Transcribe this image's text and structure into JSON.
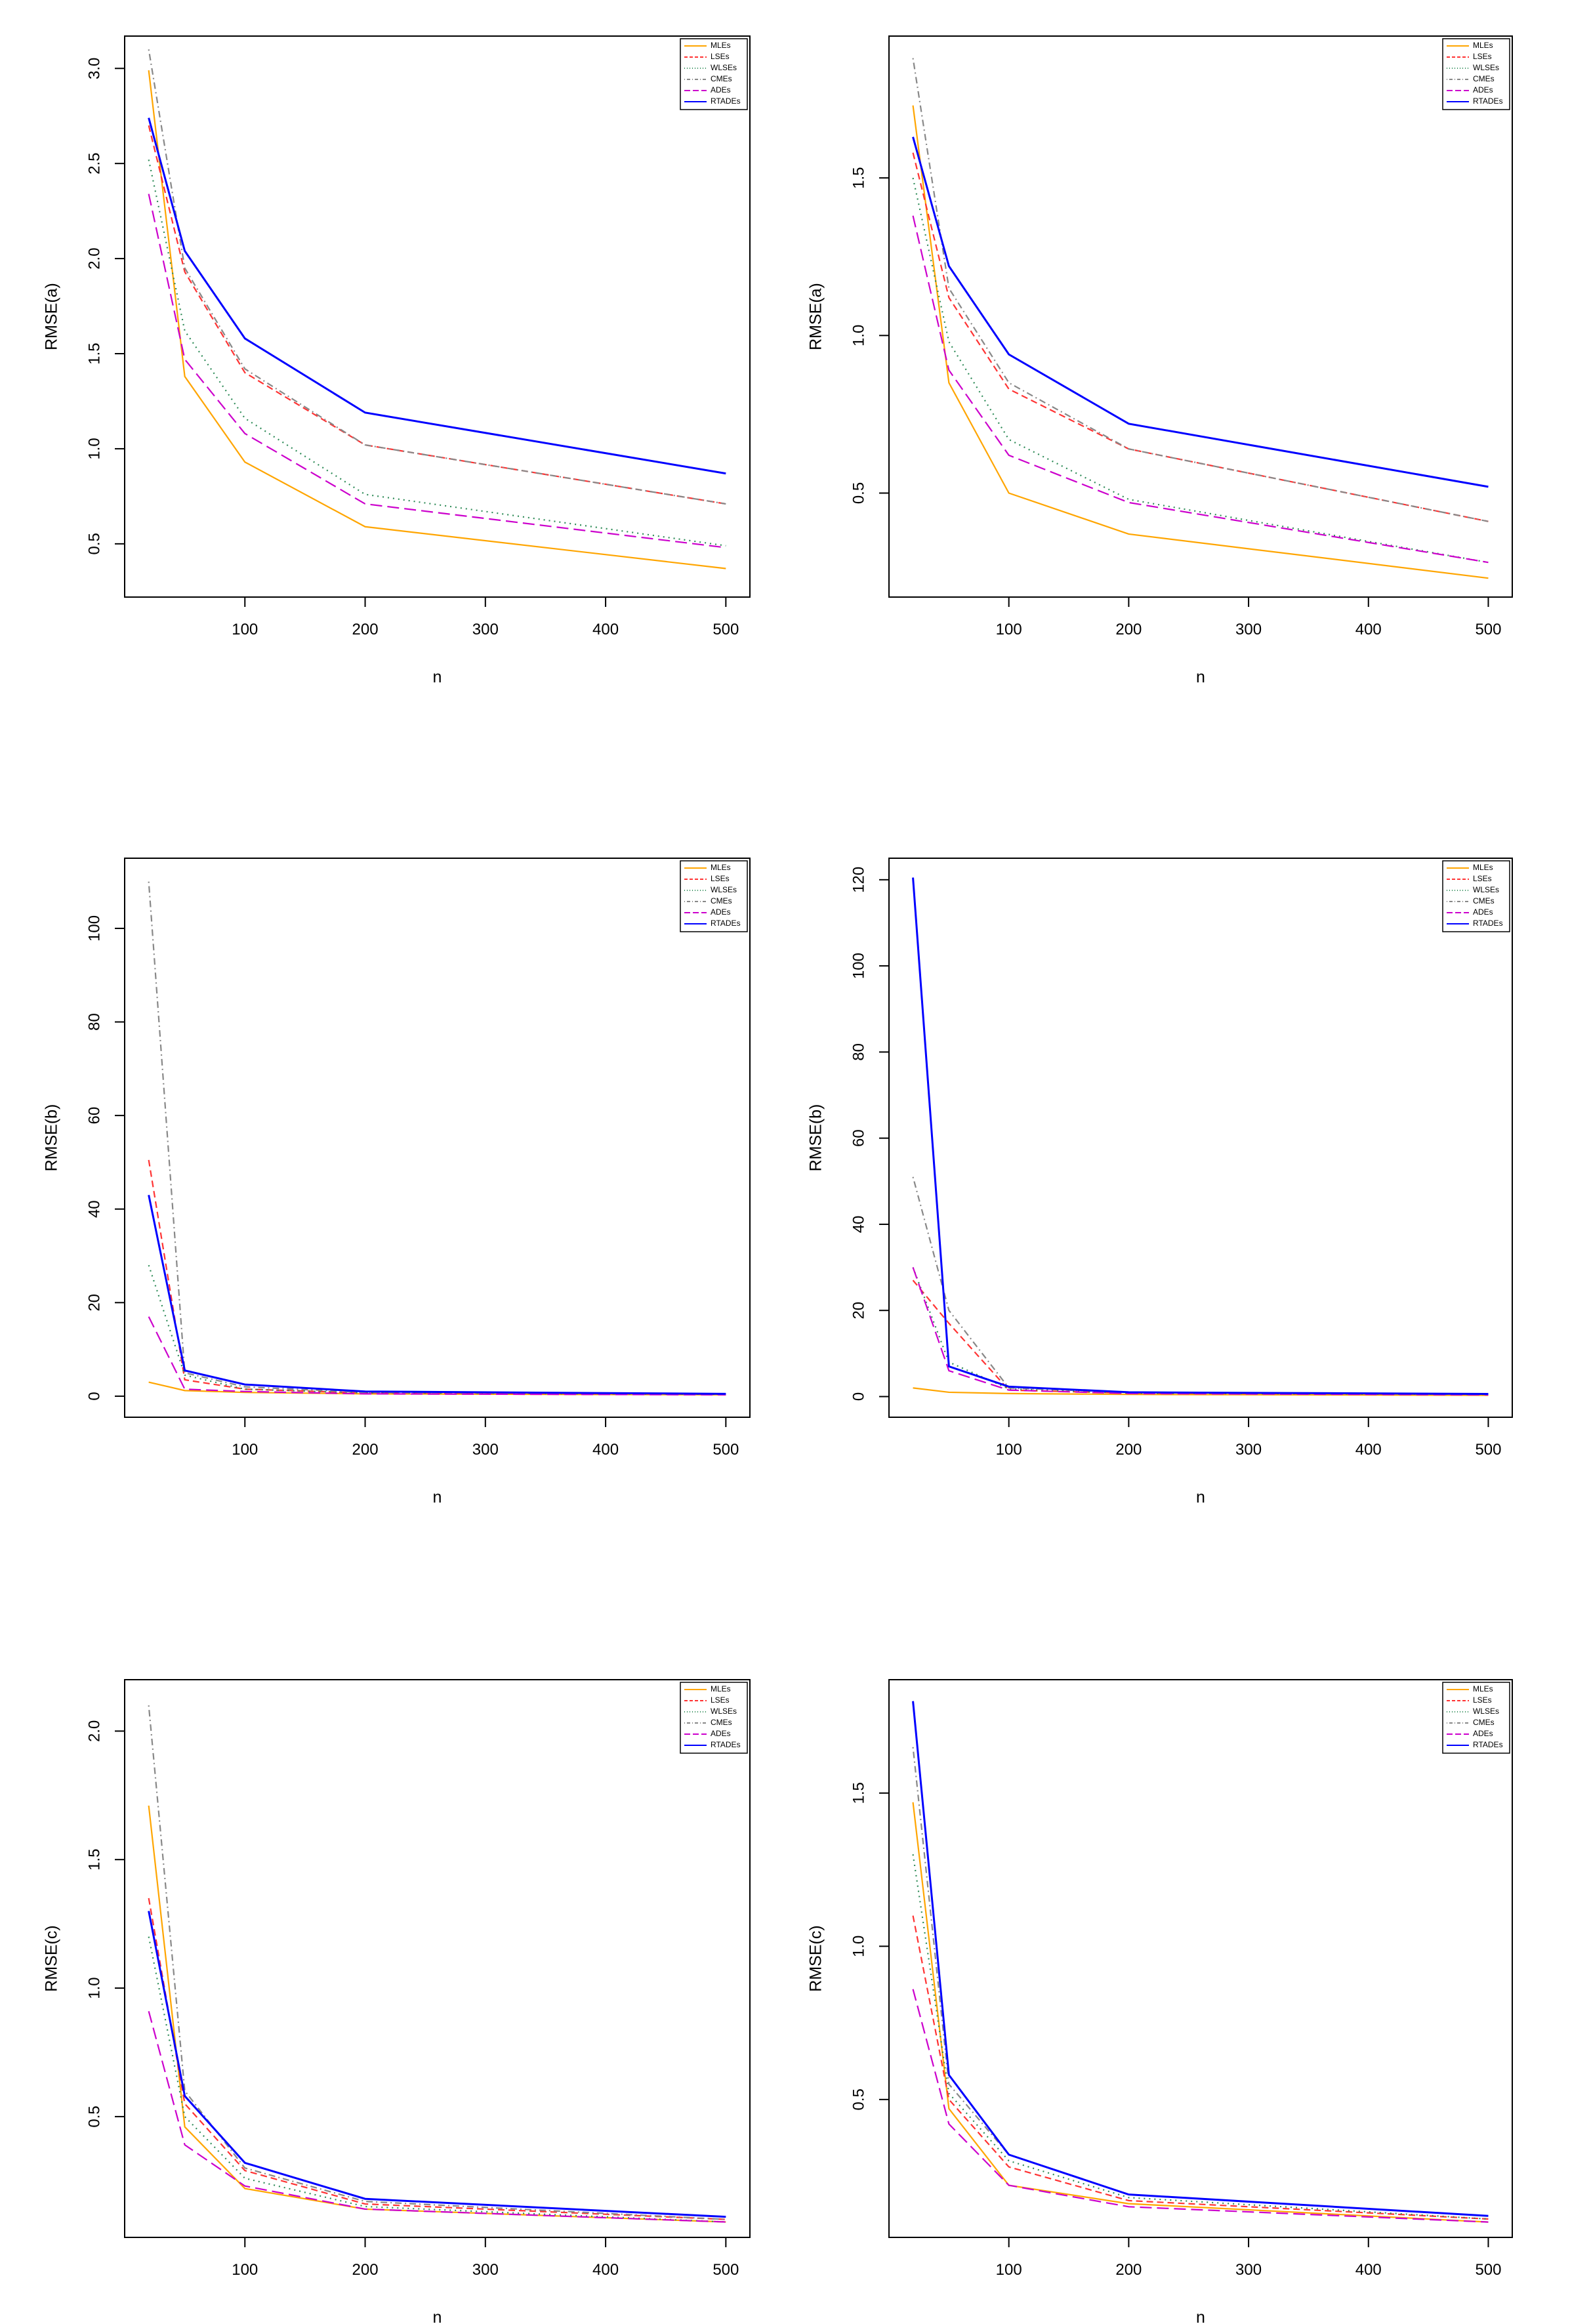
{
  "chart_data": [
    {
      "type": "line",
      "xlabel": "n",
      "ylabel": "RMSE(a)",
      "x": [
        20,
        50,
        100,
        200,
        500
      ],
      "xlim": [
        0,
        520
      ],
      "ylim": [
        0.22,
        3.17
      ],
      "xticks": [
        100,
        200,
        300,
        400,
        500
      ],
      "yticks": [
        0.5,
        1.0,
        1.5,
        2.0,
        2.5,
        3.0
      ],
      "ytick_labels": [
        "0.5",
        "1.0",
        "1.5",
        "2.0",
        "2.5",
        "3.0"
      ],
      "legend_position": "top-right",
      "grid": false,
      "series": [
        {
          "name": "MLEs",
          "values": [
            2.99,
            1.38,
            0.93,
            0.59,
            0.37
          ]
        },
        {
          "name": "LSEs",
          "values": [
            2.7,
            1.93,
            1.4,
            1.02,
            0.71
          ]
        },
        {
          "name": "WLSEs",
          "values": [
            2.52,
            1.62,
            1.16,
            0.76,
            0.49
          ]
        },
        {
          "name": "CMEs",
          "values": [
            3.1,
            1.95,
            1.42,
            1.02,
            0.71
          ]
        },
        {
          "name": "ADEs",
          "values": [
            2.34,
            1.47,
            1.08,
            0.71,
            0.48
          ]
        },
        {
          "name": "RTADEs",
          "values": [
            2.74,
            2.04,
            1.58,
            1.19,
            0.87
          ]
        }
      ]
    },
    {
      "type": "line",
      "xlabel": "n",
      "ylabel": "RMSE(a)",
      "x": [
        20,
        50,
        100,
        200,
        500
      ],
      "xlim": [
        0,
        520
      ],
      "ylim": [
        0.17,
        1.95
      ],
      "xticks": [
        100,
        200,
        300,
        400,
        500
      ],
      "yticks": [
        0.5,
        1.0,
        1.5
      ],
      "ytick_labels": [
        "0.5",
        "1.0",
        "1.5"
      ],
      "legend_position": "top-right",
      "grid": false,
      "series": [
        {
          "name": "MLEs",
          "values": [
            1.73,
            0.85,
            0.5,
            0.37,
            0.23
          ]
        },
        {
          "name": "LSEs",
          "values": [
            1.58,
            1.12,
            0.83,
            0.64,
            0.41
          ]
        },
        {
          "name": "WLSEs",
          "values": [
            1.5,
            0.98,
            0.67,
            0.48,
            0.28
          ]
        },
        {
          "name": "CMEs",
          "values": [
            1.88,
            1.15,
            0.85,
            0.64,
            0.41
          ]
        },
        {
          "name": "ADEs",
          "values": [
            1.38,
            0.89,
            0.62,
            0.47,
            0.28
          ]
        },
        {
          "name": "RTADEs",
          "values": [
            1.63,
            1.22,
            0.94,
            0.72,
            0.52
          ]
        }
      ]
    },
    {
      "type": "line",
      "xlabel": "n",
      "ylabel": "RMSE(b)",
      "x": [
        20,
        50,
        100,
        200,
        500
      ],
      "xlim": [
        0,
        520
      ],
      "ylim": [
        -4.5,
        115
      ],
      "xticks": [
        100,
        200,
        300,
        400,
        500
      ],
      "yticks": [
        0,
        20,
        40,
        60,
        80,
        100
      ],
      "ytick_labels": [
        "0",
        "20",
        "40",
        "60",
        "80",
        "100"
      ],
      "legend_position": "top-right",
      "grid": false,
      "series": [
        {
          "name": "MLEs",
          "values": [
            3.0,
            1.2,
            0.8,
            0.5,
            0.3
          ]
        },
        {
          "name": "LSEs",
          "values": [
            50.5,
            3.5,
            1.5,
            0.7,
            0.4
          ]
        },
        {
          "name": "WLSEs",
          "values": [
            28.0,
            4.5,
            1.5,
            0.7,
            0.4
          ]
        },
        {
          "name": "CMEs",
          "values": [
            110.0,
            5.0,
            2.0,
            0.8,
            0.5
          ]
        },
        {
          "name": "ADEs",
          "values": [
            17.0,
            1.5,
            1.0,
            0.5,
            0.3
          ]
        },
        {
          "name": "RTADEs",
          "values": [
            43.0,
            5.5,
            2.5,
            1.0,
            0.5
          ]
        }
      ]
    },
    {
      "type": "line",
      "xlabel": "n",
      "ylabel": "RMSE(b)",
      "x": [
        20,
        50,
        100,
        200,
        500
      ],
      "xlim": [
        0,
        520
      ],
      "ylim": [
        -4.8,
        125
      ],
      "xticks": [
        100,
        200,
        300,
        400,
        500
      ],
      "yticks": [
        0,
        20,
        40,
        60,
        80,
        100,
        120
      ],
      "ytick_labels": [
        "0",
        "20",
        "40",
        "60",
        "80",
        "100",
        "120"
      ],
      "legend_position": "top-right",
      "grid": false,
      "series": [
        {
          "name": "MLEs",
          "values": [
            2.0,
            1.0,
            0.7,
            0.5,
            0.3
          ]
        },
        {
          "name": "LSEs",
          "values": [
            27.0,
            17.0,
            1.5,
            0.8,
            0.5
          ]
        },
        {
          "name": "WLSEs",
          "values": [
            30.0,
            8.0,
            1.8,
            0.8,
            0.5
          ]
        },
        {
          "name": "CMEs",
          "values": [
            51.0,
            20.0,
            2.0,
            1.0,
            0.5
          ]
        },
        {
          "name": "ADEs",
          "values": [
            30.0,
            6.0,
            1.5,
            0.7,
            0.4
          ]
        },
        {
          "name": "RTADEs",
          "values": [
            120.5,
            7.0,
            2.3,
            1.0,
            0.6
          ]
        }
      ]
    },
    {
      "type": "line",
      "xlabel": "n",
      "ylabel": "RMSE(c)",
      "x": [
        20,
        50,
        100,
        200,
        500
      ],
      "xlim": [
        0,
        520
      ],
      "ylim": [
        0.03,
        2.2
      ],
      "xticks": [
        100,
        200,
        300,
        400,
        500
      ],
      "yticks": [
        0.5,
        1.0,
        1.5,
        2.0
      ],
      "ytick_labels": [
        "0.5",
        "1.0",
        "1.5",
        "2.0"
      ],
      "legend_position": "top-right",
      "grid": false,
      "series": [
        {
          "name": "MLEs",
          "values": [
            1.71,
            0.46,
            0.22,
            0.14,
            0.09
          ]
        },
        {
          "name": "LSEs",
          "values": [
            1.35,
            0.55,
            0.29,
            0.16,
            0.1
          ]
        },
        {
          "name": "WLSEs",
          "values": [
            1.2,
            0.5,
            0.26,
            0.15,
            0.09
          ]
        },
        {
          "name": "CMEs",
          "values": [
            2.1,
            0.6,
            0.3,
            0.17,
            0.1
          ]
        },
        {
          "name": "ADEs",
          "values": [
            0.91,
            0.39,
            0.23,
            0.14,
            0.09
          ]
        },
        {
          "name": "RTADEs",
          "values": [
            1.3,
            0.58,
            0.32,
            0.18,
            0.11
          ]
        }
      ]
    },
    {
      "type": "line",
      "xlabel": "n",
      "ylabel": "RMSE(c)",
      "x": [
        20,
        50,
        100,
        200,
        500
      ],
      "xlim": [
        0,
        520
      ],
      "ylim": [
        0.05,
        1.87
      ],
      "xticks": [
        100,
        200,
        300,
        400,
        500
      ],
      "yticks": [
        0.5,
        1.0,
        1.5
      ],
      "ytick_labels": [
        "0.5",
        "1.0",
        "1.5"
      ],
      "legend_position": "top-right",
      "grid": false,
      "series": [
        {
          "name": "MLEs",
          "values": [
            1.47,
            0.47,
            0.22,
            0.16,
            0.1
          ]
        },
        {
          "name": "LSEs",
          "values": [
            1.1,
            0.5,
            0.28,
            0.17,
            0.11
          ]
        },
        {
          "name": "WLSEs",
          "values": [
            1.3,
            0.52,
            0.3,
            0.18,
            0.11
          ]
        },
        {
          "name": "CMEs",
          "values": [
            1.65,
            0.55,
            0.32,
            0.19,
            0.12
          ]
        },
        {
          "name": "ADEs",
          "values": [
            0.86,
            0.42,
            0.22,
            0.15,
            0.1
          ]
        },
        {
          "name": "RTADEs",
          "values": [
            1.8,
            0.58,
            0.32,
            0.19,
            0.12
          ]
        }
      ]
    }
  ],
  "series_styles": [
    {
      "color": "#FFA500",
      "dash": ""
    },
    {
      "color": "#FF3333",
      "dash": "10,6"
    },
    {
      "color": "#2E8B57",
      "dash": "2,6"
    },
    {
      "color": "#888888",
      "dash": "2,5,10,5"
    },
    {
      "color": "#CC00CC",
      "dash": "18,8"
    },
    {
      "color": "#0000FF",
      "dash": ""
    }
  ]
}
